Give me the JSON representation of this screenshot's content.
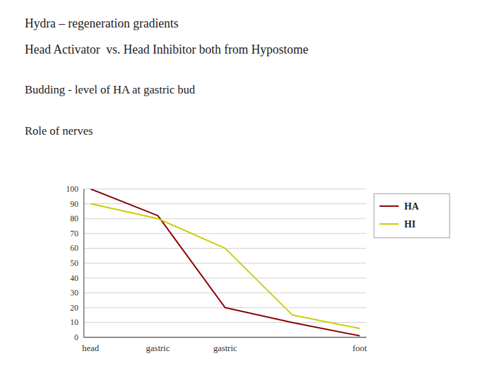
{
  "chart_data": {
    "type": "line",
    "title": "Hydra – regeneration gradients",
    "subtitle": "Head Activator  vs. Head Inhibitor both from Hypostome",
    "annotations": [
      "Budding - level of HA at gastric bud",
      "Role of nerves"
    ],
    "categories": [
      "head",
      "gastric",
      "gastric",
      null,
      "foot"
    ],
    "series": [
      {
        "name": "HA",
        "color": "#8b0000",
        "values": [
          100,
          82,
          20,
          10,
          1
        ]
      },
      {
        "name": "HI",
        "color": "#cccc00",
        "values": [
          90,
          80,
          60,
          15,
          6
        ]
      }
    ],
    "ylim": [
      0,
      100
    ],
    "yticks": [
      0,
      10,
      20,
      30,
      40,
      50,
      60,
      70,
      80,
      90,
      100
    ],
    "grid": true,
    "legend": "right"
  }
}
